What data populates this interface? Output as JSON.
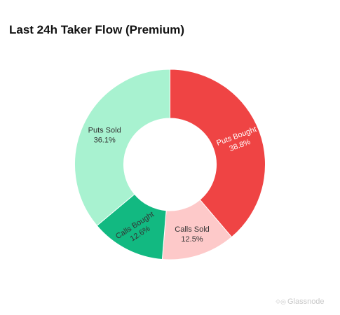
{
  "chart_data": {
    "type": "pie",
    "title": "Last 24h Taker Flow (Premium)",
    "donut": true,
    "categories": [
      "Puts Bought",
      "Calls Sold",
      "Calls Bought",
      "Puts Sold"
    ],
    "values": [
      38.8,
      12.5,
      12.6,
      36.1
    ],
    "value_labels": [
      "38.8%",
      "12.5%",
      "12.6%",
      "36.1%"
    ],
    "colors": [
      "#ef4444",
      "#fdc9c9",
      "#12b981",
      "#a8f2d0"
    ],
    "label_colors": [
      "#ffffff",
      "#333333",
      "#333333",
      "#333333"
    ],
    "legend": "none"
  },
  "watermark": {
    "icon": "glassnode-logo-icon",
    "text": "Glassnode"
  }
}
